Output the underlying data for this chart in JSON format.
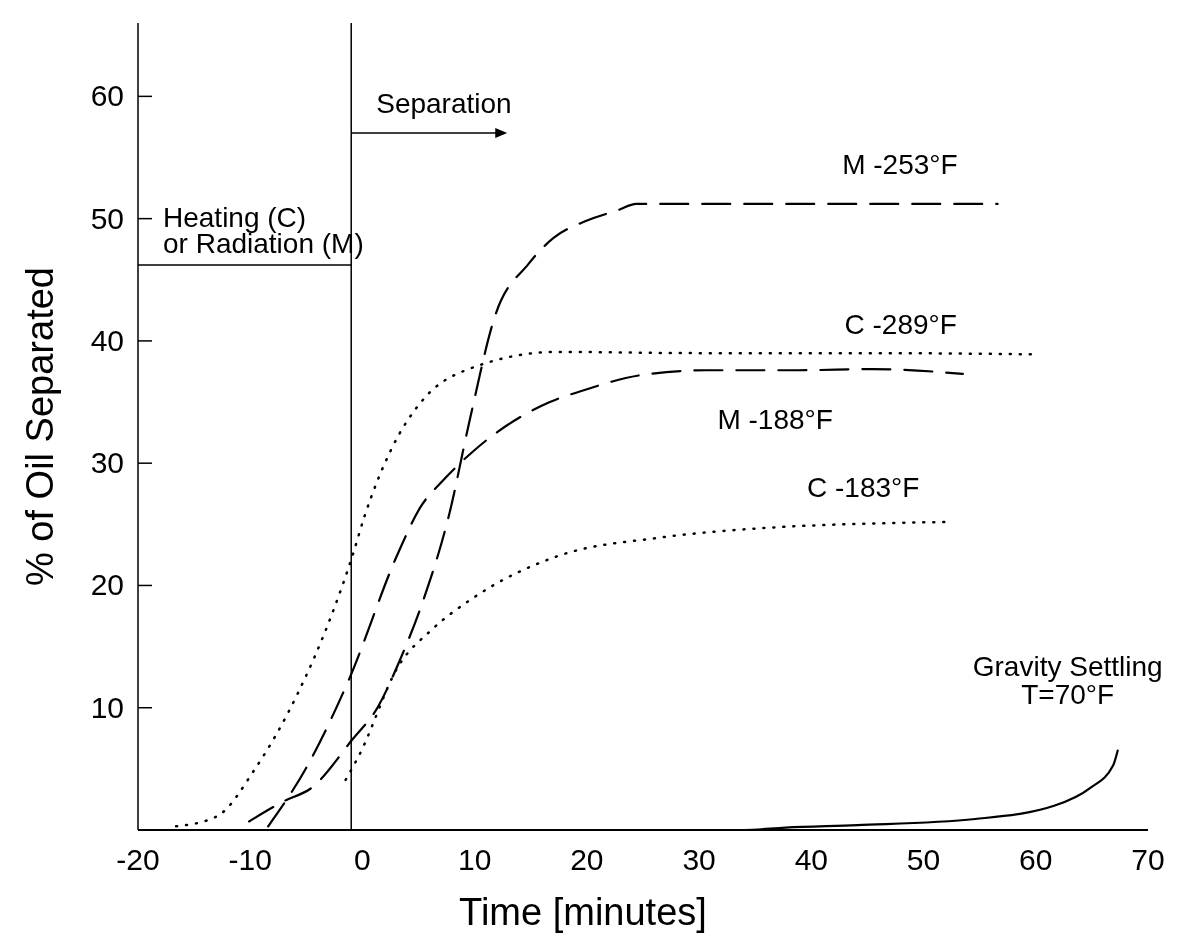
{
  "chart_data": {
    "type": "line",
    "xlabel": "Time [minutes]",
    "ylabel": "% of Oil Separated",
    "xlim": [
      -20,
      70
    ],
    "xticks": [
      -20,
      -10,
      0,
      10,
      20,
      30,
      40,
      50,
      60,
      70
    ],
    "ylim": [
      0,
      66
    ],
    "yticks": [
      10,
      20,
      30,
      40,
      50,
      60
    ],
    "grid": false,
    "ref_lines": [
      {
        "axis": "x",
        "value": -1,
        "color": "#000000"
      }
    ],
    "annotations": [
      "Separation",
      "Heating (C)",
      "or Radiation (M)"
    ],
    "series": [
      {
        "name": "M -253°F",
        "color": "#000000",
        "line_style": "dashed",
        "x": [
          -10.1,
          -6.9,
          -4.6,
          -0.9,
          1.4,
          3.2,
          5.5,
          7.7,
          9.6,
          11.8,
          14.8,
          17,
          19.9,
          22.8,
          24.4,
          56.6
        ],
        "values": [
          0.7,
          2.4,
          3.4,
          7.4,
          10.1,
          13.6,
          19,
          25.7,
          33.7,
          42,
          46.3,
          48.4,
          49.8,
          50.7,
          51.2,
          51.2
        ]
      },
      {
        "name": "C -289°F",
        "color": "#000000",
        "line_style": "dotted",
        "x": [
          -16.6,
          -13,
          -9.5,
          -5.8,
          -2.7,
          -0.9,
          0.2,
          2.5,
          5.5,
          9.2,
          17.4,
          30,
          45,
          60.1
        ],
        "values": [
          0.3,
          1.1,
          5.1,
          11.1,
          17.7,
          22.4,
          25.7,
          31,
          35.3,
          37.6,
          39.1,
          39,
          39,
          38.9
        ]
      },
      {
        "name": "M -188°F",
        "color": "#000000",
        "line_style": "dashed",
        "x": [
          -8.4,
          -5,
          -1.3,
          3.2,
          5.1,
          7.3,
          9.9,
          16.7,
          19.5,
          24.8,
          30.7,
          38.9,
          45.5,
          53.5
        ],
        "values": [
          0.3,
          5.1,
          12.1,
          22.7,
          26.3,
          28.7,
          31,
          35,
          35.9,
          37.2,
          37.6,
          37.6,
          37.7,
          37.3
        ]
      },
      {
        "name": "C -183°F",
        "color": "#000000",
        "line_style": "dotted",
        "x": [
          -1.5,
          -0.3,
          3.2,
          6.2,
          9.9,
          17.4,
          26.4,
          34.2,
          52.3
        ],
        "values": [
          4.1,
          6.1,
          13.4,
          16.4,
          19,
          22.4,
          23.9,
          24.6,
          25.2
        ]
      },
      {
        "name": "Gravity Settling T=70°F",
        "color": "#000000",
        "line_style": "solid",
        "x": [
          -1,
          34,
          37.7,
          44.1,
          54.6,
          61.7,
          64.8,
          66.9,
          67.3
        ],
        "values": [
          0,
          0,
          0.2,
          0.4,
          0.9,
          2,
          3.4,
          5.3,
          6.5
        ]
      }
    ]
  }
}
